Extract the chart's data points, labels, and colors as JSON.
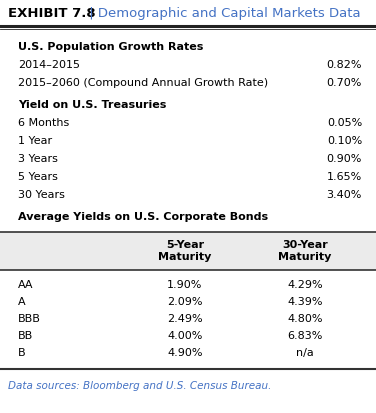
{
  "title_bold": "EXHIBIT 7.8",
  "title_rest": " | Demographic and Capital Markets Data",
  "title_bold_color": "#000000",
  "title_rest_color": "#4472c4",
  "section1_header": "U.S. Population Growth Rates",
  "section1_rows": [
    [
      "2014–2015",
      "0.82%"
    ],
    [
      "2015–2060 (Compound Annual Growth Rate)",
      "0.70%"
    ]
  ],
  "section2_header": "Yield on U.S. Treasuries",
  "section2_rows": [
    [
      "6 Months",
      "0.05%"
    ],
    [
      "1 Year",
      "0.10%"
    ],
    [
      "3 Years",
      "0.90%"
    ],
    [
      "5 Years",
      "1.65%"
    ],
    [
      "30 Years",
      "3.40%"
    ]
  ],
  "section3_header": "Average Yields on U.S. Corporate Bonds",
  "section3_col1": "5-Year\nMaturity",
  "section3_col2": "30-Year\nMaturity",
  "section3_rows": [
    [
      "AA",
      "1.90%",
      "4.29%"
    ],
    [
      "A",
      "2.09%",
      "4.39%"
    ],
    [
      "BBB",
      "2.49%",
      "4.80%"
    ],
    [
      "BB",
      "4.00%",
      "6.83%"
    ],
    [
      "B",
      "4.90%",
      "n/a"
    ]
  ],
  "footer": "Data sources: Bloomberg and U.S. Census Bureau.",
  "footer_color": "#4472c4",
  "bg_color": "#ffffff",
  "header_bg": "#ebebeb",
  "text_color": "#000000",
  "line_color": "#333333",
  "title_line_color": "#222222"
}
